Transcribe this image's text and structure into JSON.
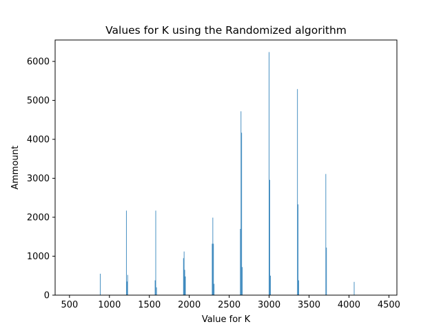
{
  "chart_data": {
    "type": "bar",
    "title": "Values for K using the Randomized algorithm",
    "xlabel": "Value for K",
    "ylabel": "Ammount",
    "xlim": [
      320,
      4600
    ],
    "ylim": [
      0,
      6550
    ],
    "xticks": [
      500,
      1000,
      1500,
      2000,
      2500,
      3000,
      3500,
      4000,
      4500
    ],
    "yticks": [
      0,
      1000,
      2000,
      3000,
      4000,
      5000,
      6000
    ],
    "grid": false,
    "legend": "none",
    "bar_width": 7,
    "bar_color": "#1f77b4",
    "x": [
      885,
      1212,
      1220,
      1228,
      1572,
      1580,
      1590,
      1927,
      1935,
      1943,
      1951,
      2287,
      2295,
      2303,
      2311,
      2640,
      2648,
      2656,
      2664,
      3000,
      3008,
      3016,
      3355,
      3363,
      3371,
      3710,
      3718,
      4065
    ],
    "values": [
      550,
      2170,
      350,
      520,
      380,
      2170,
      200,
      950,
      1120,
      650,
      480,
      1320,
      1990,
      1320,
      290,
      1700,
      4720,
      4170,
      720,
      6240,
      2960,
      500,
      5290,
      2330,
      380,
      3110,
      1220,
      340
    ]
  }
}
